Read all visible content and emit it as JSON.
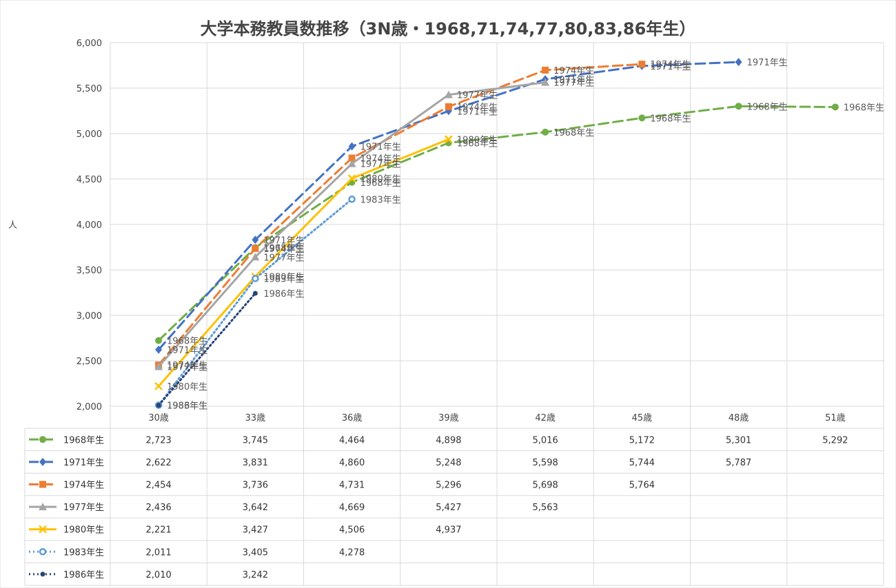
{
  "chart_data": {
    "type": "line",
    "title": "大学本務教員数推移（3N歳・1968,71,74,77,80,83,86年生）",
    "ylabel": "人",
    "xlabel": "",
    "ylim": [
      2000,
      6000
    ],
    "y_ticks": [
      "2,000",
      "2,500",
      "3,000",
      "3,500",
      "4,000",
      "4,500",
      "5,000",
      "5,500",
      "6,000"
    ],
    "y_tick_values": [
      2000,
      2500,
      3000,
      3500,
      4000,
      4500,
      5000,
      5500,
      6000
    ],
    "categories": [
      "30歳",
      "33歳",
      "36歳",
      "39歳",
      "42歳",
      "45歳",
      "48歳",
      "51歳"
    ],
    "grid": true,
    "legend": "data-table",
    "series": [
      {
        "name": "1968年生",
        "color": "#70AD47",
        "dash": "dash",
        "marker": "circle",
        "values": [
          2723,
          3745,
          4464,
          4898,
          5016,
          5172,
          5301,
          5292
        ],
        "display": [
          "2,723",
          "3,745",
          "4,464",
          "4,898",
          "5,016",
          "5,172",
          "5,301",
          "5,292"
        ]
      },
      {
        "name": "1971年生",
        "color": "#4472C4",
        "dash": "dash",
        "marker": "diamond",
        "values": [
          2622,
          3831,
          4860,
          5248,
          5598,
          5744,
          5787,
          null
        ],
        "display": [
          "2,622",
          "3,831",
          "4,860",
          "5,248",
          "5,598",
          "5,744",
          "5,787",
          ""
        ]
      },
      {
        "name": "1974年生",
        "color": "#ED7D31",
        "dash": "dash",
        "marker": "square",
        "values": [
          2454,
          3736,
          4731,
          5296,
          5698,
          5764,
          null,
          null
        ],
        "display": [
          "2,454",
          "3,736",
          "4,731",
          "5,296",
          "5,698",
          "5,764",
          "",
          ""
        ]
      },
      {
        "name": "1977年生",
        "color": "#A5A5A5",
        "dash": "solid",
        "marker": "triangle",
        "values": [
          2436,
          3642,
          4669,
          5427,
          5563,
          null,
          null,
          null
        ],
        "display": [
          "2,436",
          "3,642",
          "4,669",
          "5,427",
          "5,563",
          "",
          "",
          ""
        ]
      },
      {
        "name": "1980年生",
        "color": "#FFC000",
        "dash": "solid",
        "marker": "x",
        "values": [
          2221,
          3427,
          4506,
          4937,
          null,
          null,
          null,
          null
        ],
        "display": [
          "2,221",
          "3,427",
          "4,506",
          "4,937",
          "",
          "",
          "",
          ""
        ]
      },
      {
        "name": "1983年生",
        "color": "#5B9BD5",
        "dash": "dot",
        "marker": "ring",
        "values": [
          2011,
          3405,
          4278,
          null,
          null,
          null,
          null,
          null
        ],
        "display": [
          "2,011",
          "3,405",
          "4,278",
          "",
          "",
          "",
          "",
          ""
        ]
      },
      {
        "name": "1986年生",
        "color": "#264478",
        "dash": "dot",
        "marker": "dot",
        "values": [
          2010,
          3242,
          null,
          null,
          null,
          null,
          null,
          null
        ],
        "display": [
          "2,010",
          "3,242",
          "",
          "",
          "",
          "",
          "",
          ""
        ]
      }
    ]
  }
}
